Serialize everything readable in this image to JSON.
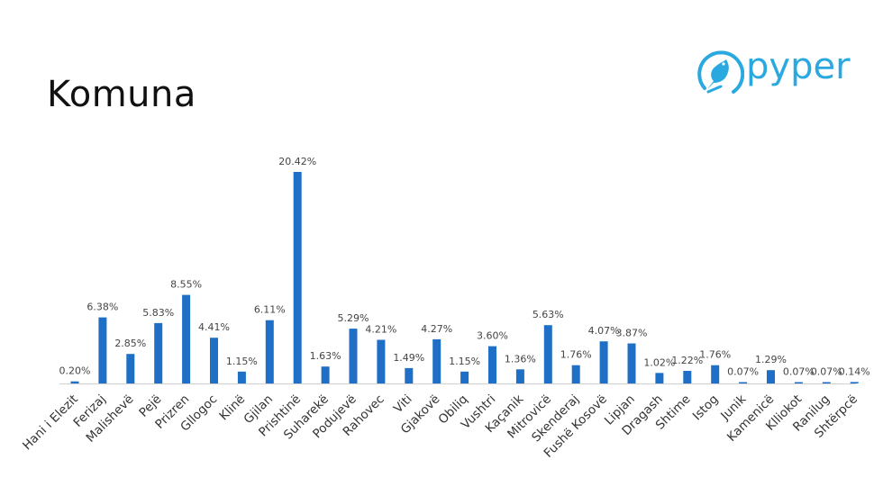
{
  "slide": {
    "title": "Komuna"
  },
  "logo": {
    "text": "pyper",
    "icon": "bird-circle-icon",
    "color": "#29a9e0"
  },
  "chart_data": {
    "type": "bar",
    "title": "",
    "xlabel": "",
    "ylabel": "",
    "ylim": [
      0,
      21
    ],
    "grid": false,
    "bar_color": "#1f6fc6",
    "categories": [
      "Hani i Elezit",
      "Ferizaj",
      "Malishevë",
      "Pejë",
      "Prizren",
      "Gllogoc",
      "Klinë",
      "Gjilan",
      "Prishtinë",
      "Suharekë",
      "Podujevë",
      "Rahovec",
      "Viti",
      "Gjakovë",
      "Obiliq",
      "Vushtri",
      "Kaçanik",
      "Mitrovicë",
      "Skenderaj",
      "Fushë Kosovë",
      "Lipjan",
      "Dragash",
      "Shtime",
      "Istog",
      "Junik",
      "Kamenicë",
      "Klliokot",
      "Ranilug",
      "Shtërpcë"
    ],
    "values": [
      0.2,
      6.38,
      2.85,
      5.83,
      8.55,
      4.41,
      1.15,
      6.11,
      20.42,
      1.63,
      5.29,
      4.21,
      1.49,
      4.27,
      1.15,
      3.6,
      1.36,
      5.63,
      1.76,
      4.07,
      3.87,
      1.02,
      1.22,
      1.76,
      0.07,
      1.29,
      0.07,
      0.07,
      0.14
    ],
    "value_labels": [
      "0.20%",
      "6.38%",
      "2.85%",
      "5.83%",
      "8.55%",
      "4.41%",
      "1.15%",
      "6.11%",
      "20.42%",
      "1.63%",
      "5.29%",
      "4.21%",
      "1.49%",
      "4.27%",
      "1.15%",
      "3.60%",
      "1.36%",
      "5.63%",
      "1.76%",
      "4.07%",
      "3.87%",
      "1.02%",
      "1.22%",
      "1.76%",
      "0.07%",
      "1.29%",
      "0.07%",
      "0.07%",
      "0.14%"
    ]
  }
}
